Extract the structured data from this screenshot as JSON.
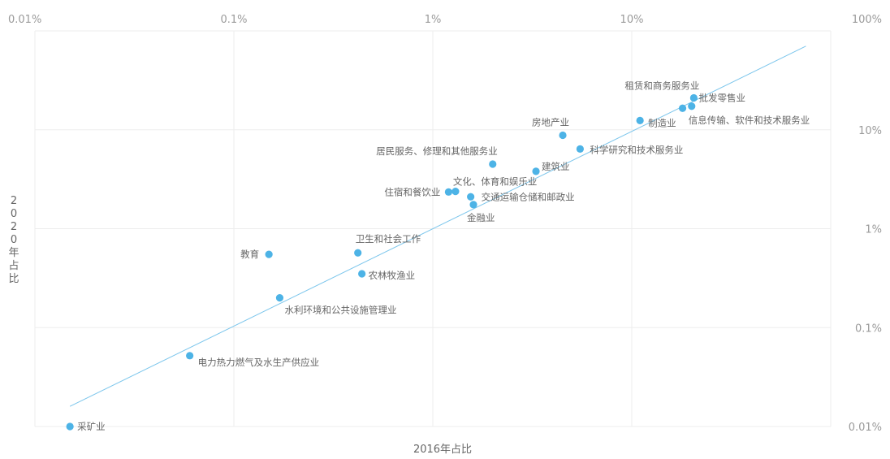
{
  "chart_data": {
    "type": "scatter",
    "xlabel": "2016年占比",
    "ylabel": "2020年占比",
    "x_scale": "log",
    "y_scale": "log",
    "xlim": [
      0.01,
      100
    ],
    "ylim": [
      0.01,
      100
    ],
    "grid": true,
    "x_ticks": [
      "0.01%",
      "0.1%",
      "1%",
      "10%",
      "100%"
    ],
    "y_ticks": [
      "0.01%",
      "0.1%",
      "1%",
      "10%"
    ],
    "trendline": {
      "x": [
        0.015,
        75
      ],
      "y": [
        0.016,
        70
      ]
    },
    "point_color": "#4db3e6",
    "line_color": "#7cc6ec",
    "points": [
      {
        "label": "采矿业",
        "x": 0.015,
        "y": 0.01
      },
      {
        "label": "电力热力燃气及水生产供应业",
        "x": 0.06,
        "y": 0.052
      },
      {
        "label": "水利环境和公共设施管理业",
        "x": 0.17,
        "y": 0.2
      },
      {
        "label": "教育",
        "x": 0.15,
        "y": 0.55
      },
      {
        "label": "卫生和社会工作",
        "x": 0.42,
        "y": 0.57
      },
      {
        "label": "农林牧渔业",
        "x": 0.44,
        "y": 0.35
      },
      {
        "label": "住宿和餐饮业",
        "x": 1.2,
        "y": 2.35
      },
      {
        "label": "文化、体育和娱乐业",
        "x": 1.3,
        "y": 2.38
      },
      {
        "label": "交通运输仓储和邮政业",
        "x": 1.55,
        "y": 2.1
      },
      {
        "label": "金融业",
        "x": 1.6,
        "y": 1.75
      },
      {
        "label": "居民服务、修理和其他服务业",
        "x": 2.0,
        "y": 4.5
      },
      {
        "label": "建筑业",
        "x": 3.3,
        "y": 3.8
      },
      {
        "label": "房地产业",
        "x": 4.5,
        "y": 8.8
      },
      {
        "label": "科学研究和技术服务业",
        "x": 5.5,
        "y": 6.4
      },
      {
        "label": "制造业",
        "x": 11,
        "y": 12.4
      },
      {
        "label": "批发零售业",
        "x": 18,
        "y": 16.5
      },
      {
        "label": "信息传输、软件和技术服务业",
        "x": 20,
        "y": 17.3
      },
      {
        "label": "租赁和商务服务业",
        "x": 20.5,
        "y": 21
      }
    ]
  }
}
